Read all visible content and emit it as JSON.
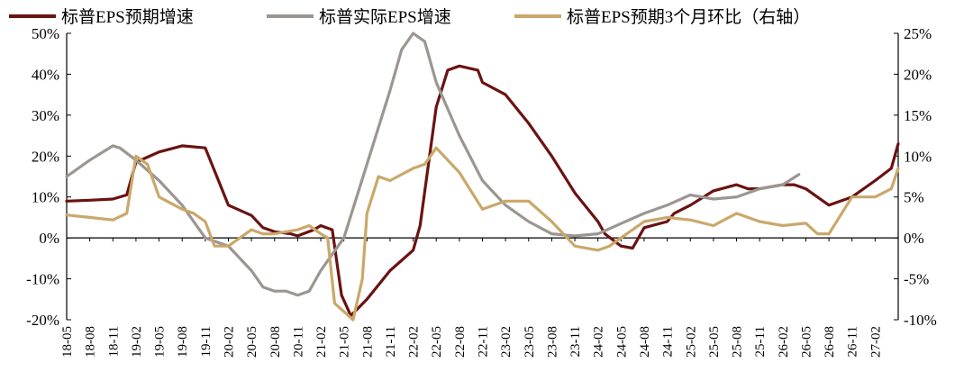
{
  "chart_data": {
    "type": "line",
    "x_categories": [
      "18-05",
      "18-08",
      "18-11",
      "19-02",
      "19-05",
      "19-08",
      "19-11",
      "20-02",
      "20-05",
      "20-08",
      "20-11",
      "21-02",
      "21-05",
      "21-08",
      "21-11",
      "22-02",
      "22-05",
      "22-08",
      "22-11",
      "23-02",
      "23-05",
      "23-08",
      "23-11",
      "24-02",
      "24-05",
      "24-08",
      "24-11",
      "25-02",
      "25-05",
      "25-08",
      "25-11",
      "26-02",
      "26-05",
      "26-08",
      "26-11",
      "27-02"
    ],
    "y_left": {
      "ticks": [
        "50%",
        "40%",
        "30%",
        "20%",
        "10%",
        "0%",
        "-10%",
        "-20%"
      ],
      "range": [
        -20,
        50
      ]
    },
    "y_right": {
      "ticks": [
        "25%",
        "20%",
        "15%",
        "10%",
        "5%",
        "0%",
        "-5%",
        "-10%"
      ],
      "range": [
        -10,
        25
      ]
    },
    "series": [
      {
        "name": "标普EPS预期增速",
        "axis": "left",
        "color": "#6b1212",
        "points": [
          [
            0,
            9
          ],
          [
            1,
            9.2
          ],
          [
            2,
            9.5
          ],
          [
            2.6,
            10.5
          ],
          [
            3,
            18.5
          ],
          [
            4,
            21
          ],
          [
            5,
            22.5
          ],
          [
            6,
            22
          ],
          [
            6.5,
            15
          ],
          [
            7,
            8
          ],
          [
            8,
            5.5
          ],
          [
            8.5,
            2.5
          ],
          [
            9,
            1.5
          ],
          [
            9.7,
            1
          ],
          [
            10,
            0.5
          ],
          [
            10.7,
            2
          ],
          [
            11,
            3
          ],
          [
            11.5,
            2
          ],
          [
            11.9,
            -14
          ],
          [
            12.3,
            -19
          ],
          [
            13,
            -15
          ],
          [
            14,
            -8
          ],
          [
            15,
            -3
          ],
          [
            15.3,
            3
          ],
          [
            16,
            32
          ],
          [
            16.5,
            41
          ],
          [
            17,
            42
          ],
          [
            17.8,
            41
          ],
          [
            18,
            38
          ],
          [
            19,
            35
          ],
          [
            20,
            28
          ],
          [
            21,
            20
          ],
          [
            22,
            11
          ],
          [
            23,
            4
          ],
          [
            23.3,
            1
          ],
          [
            24,
            -2
          ],
          [
            24.5,
            -2.5
          ],
          [
            25,
            2.5
          ],
          [
            26,
            4
          ],
          [
            26.3,
            6
          ],
          [
            27,
            8
          ],
          [
            28,
            11.5
          ],
          [
            29,
            13
          ],
          [
            29.5,
            12
          ],
          [
            30,
            12
          ],
          [
            31,
            13
          ],
          [
            31.5,
            13
          ],
          [
            32,
            12
          ],
          [
            33,
            8
          ],
          [
            33.5,
            9
          ],
          [
            34,
            10
          ],
          [
            35,
            14
          ],
          [
            35.7,
            17
          ],
          [
            36,
            23
          ]
        ]
      },
      {
        "name": "标普实际EPS增速",
        "axis": "left",
        "color": "#9b9691",
        "points": [
          [
            0,
            15
          ],
          [
            1,
            19
          ],
          [
            2,
            22.5
          ],
          [
            2.3,
            22
          ],
          [
            3,
            19
          ],
          [
            4,
            14
          ],
          [
            5,
            8
          ],
          [
            5.5,
            4
          ],
          [
            6,
            0
          ],
          [
            6.5,
            -1
          ],
          [
            7,
            -2
          ],
          [
            8,
            -8
          ],
          [
            8.5,
            -12
          ],
          [
            9,
            -13
          ],
          [
            9.5,
            -13
          ],
          [
            10,
            -14
          ],
          [
            10.5,
            -13
          ],
          [
            11,
            -8
          ],
          [
            11.5,
            -4
          ],
          [
            12,
            0
          ],
          [
            13,
            18
          ],
          [
            14,
            36
          ],
          [
            14.5,
            46
          ],
          [
            15,
            50
          ],
          [
            15.5,
            48
          ],
          [
            16,
            38
          ],
          [
            17,
            25
          ],
          [
            18,
            14
          ],
          [
            19,
            8
          ],
          [
            20,
            4
          ],
          [
            21,
            1
          ],
          [
            22,
            0.5
          ],
          [
            23,
            1
          ],
          [
            24,
            3.5
          ],
          [
            25,
            6
          ],
          [
            26,
            8
          ],
          [
            27,
            10.5
          ],
          [
            28,
            9.5
          ],
          [
            29,
            10
          ],
          [
            30,
            12
          ],
          [
            31,
            13
          ],
          [
            31.7,
            15.5
          ]
        ]
      },
      {
        "name": "标普EPS预期3个月环比（右轴）",
        "axis": "right",
        "color": "#caa86a",
        "points": [
          [
            0,
            2.8
          ],
          [
            1,
            2.5
          ],
          [
            2,
            2.2
          ],
          [
            2.6,
            3
          ],
          [
            3,
            10
          ],
          [
            3.5,
            9
          ],
          [
            4,
            5
          ],
          [
            5,
            3.5
          ],
          [
            5.5,
            3
          ],
          [
            6,
            2
          ],
          [
            6.4,
            -1
          ],
          [
            7,
            -1
          ],
          [
            7.5,
            0
          ],
          [
            8,
            1
          ],
          [
            8.5,
            0.5
          ],
          [
            9,
            0.5
          ],
          [
            10,
            1
          ],
          [
            10.5,
            1.5
          ],
          [
            11,
            0.5
          ],
          [
            11.3,
            0
          ],
          [
            11.6,
            -8
          ],
          [
            12,
            -9
          ],
          [
            12.4,
            -10
          ],
          [
            12.8,
            -5
          ],
          [
            13,
            3
          ],
          [
            13.5,
            7.5
          ],
          [
            14,
            7
          ],
          [
            15,
            8.5
          ],
          [
            15.5,
            9
          ],
          [
            16,
            11
          ],
          [
            17,
            8
          ],
          [
            18,
            3.5
          ],
          [
            19,
            4.5
          ],
          [
            20,
            4.5
          ],
          [
            21,
            2
          ],
          [
            22,
            -1
          ],
          [
            23,
            -1.5
          ],
          [
            23.5,
            -1
          ],
          [
            24,
            0
          ],
          [
            25,
            2
          ],
          [
            26,
            2.5
          ],
          [
            27,
            2.2
          ],
          [
            28,
            1.5
          ],
          [
            29,
            3
          ],
          [
            30,
            2
          ],
          [
            31,
            1.5
          ],
          [
            32,
            1.8
          ],
          [
            32.5,
            0.5
          ],
          [
            33,
            0.5
          ],
          [
            34,
            5
          ],
          [
            35,
            5
          ],
          [
            35.7,
            6
          ],
          [
            36,
            8.5
          ]
        ]
      }
    ],
    "grid": false,
    "legend_position": "top"
  }
}
